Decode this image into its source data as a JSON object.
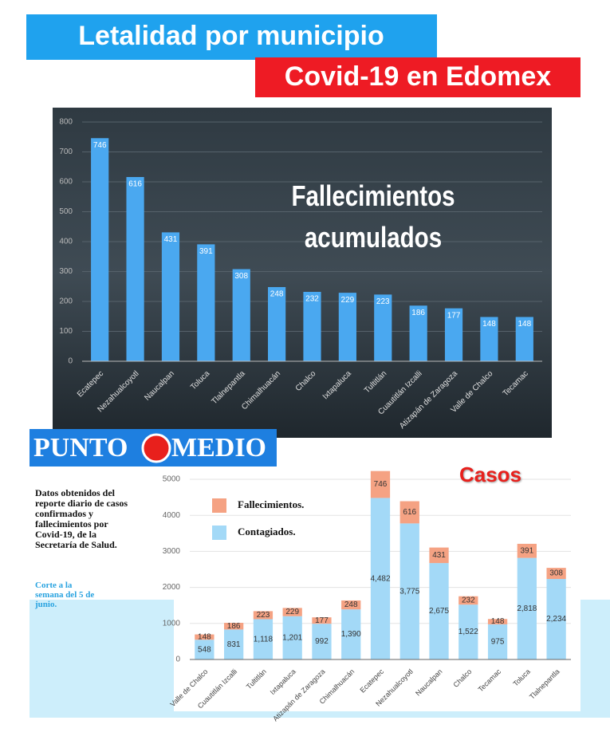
{
  "header": {
    "title": "Letalidad por municipio",
    "subtitle": "Covid-19 en Edomex"
  },
  "logo": {
    "left": "PUNTO",
    "right": "MEDIO"
  },
  "notes": {
    "source": "Datos obtenidos del reporte diario de casos confirmados y fallecimientos por Covid-19, de la Secretaría de Salud.",
    "cutoff": "Corte a la semana del 5 de junio."
  },
  "chart_data": [
    {
      "type": "bar",
      "title": "Fallecimientos acumulados",
      "categories": [
        "Ecatepec",
        "Nezahualcoyotl",
        "Naucalpan",
        "Toluca",
        "Tlalnepantla",
        "Chimalhuacán",
        "Chalco",
        "Ixtapaluca",
        "Tultitlán",
        "Cuautitlán Izcalli",
        "Atizapán de Zaragoza",
        "Valle de Chalco",
        "Tecamac"
      ],
      "values": [
        746,
        616,
        431,
        391,
        308,
        248,
        232,
        229,
        223,
        186,
        177,
        148,
        148
      ],
      "color": "#4aa8f0",
      "ylim": [
        0,
        800
      ],
      "yticks": [
        0,
        100,
        200,
        300,
        400,
        500,
        600,
        700,
        800
      ],
      "grid": true
    },
    {
      "type": "bar",
      "stacked": true,
      "title": "Casos",
      "categories": [
        "Valle de Chalco",
        "Cuautitlán Izcalli",
        "Tultitlán",
        "Ixtapaluca",
        "Atizapán de Zaragoza",
        "Chimalhuacán",
        "Ecatepec",
        "Nezahualcoyotl",
        "Naucalpan",
        "Chalco",
        "Tecamac",
        "Toluca",
        "Tlalnepantla"
      ],
      "series": [
        {
          "name": "Contagiados.",
          "color": "#a3d9f7",
          "values": [
            548,
            831,
            1118,
            1201,
            992,
            1390,
            4482,
            3775,
            2675,
            1522,
            975,
            2818,
            2234
          ],
          "value_labels": [
            "548",
            "831",
            "1,118",
            "1,201",
            "992",
            "1,390",
            "4,482",
            "3,775",
            "2,675",
            "1,522",
            "975",
            "2,818",
            "2,234"
          ]
        },
        {
          "name": "Fallecimientos.",
          "color": "#f5a283",
          "values": [
            148,
            186,
            223,
            229,
            177,
            248,
            746,
            616,
            431,
            232,
            148,
            391,
            308
          ]
        }
      ],
      "ylim": [
        0,
        5000
      ],
      "yticks": [
        0,
        1000,
        2000,
        3000,
        4000,
        5000
      ],
      "grid": true,
      "legend": "upper left"
    }
  ]
}
